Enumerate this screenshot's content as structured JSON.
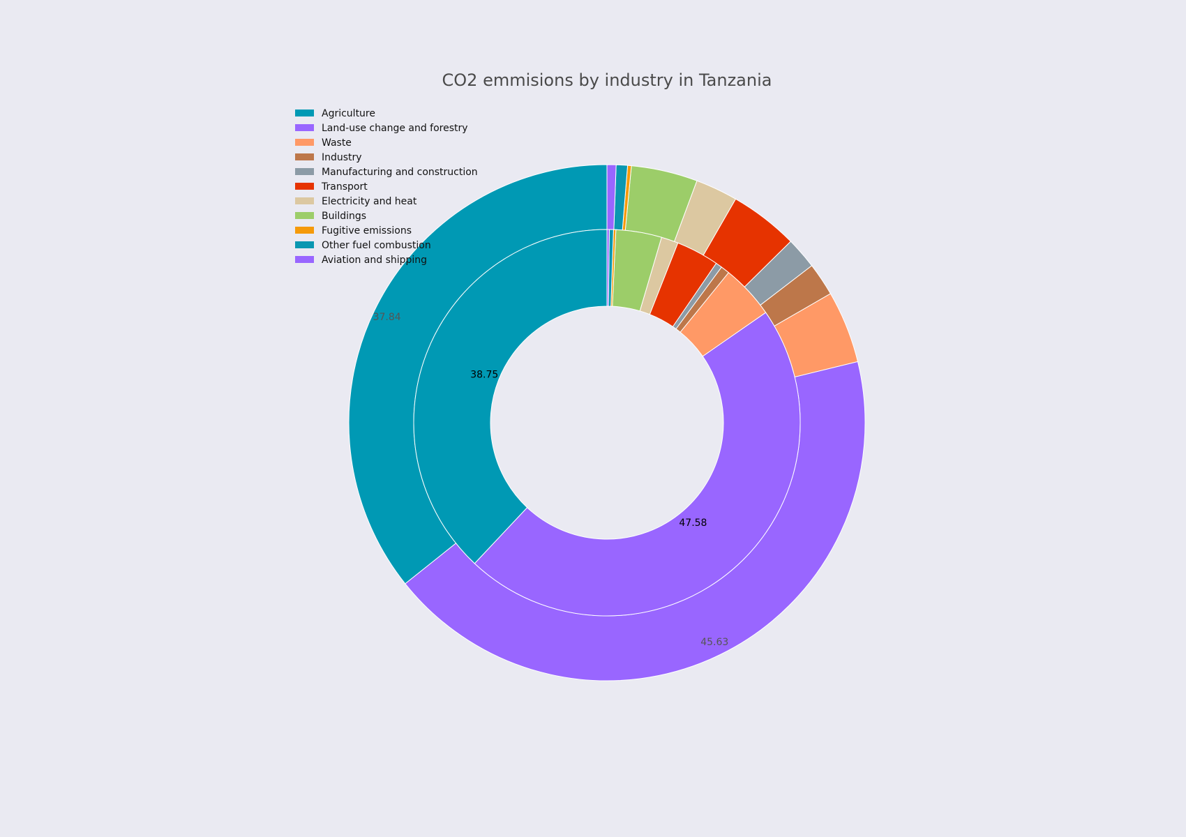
{
  "chart_data": {
    "type": "pie",
    "subtype": "nested-donut",
    "title": "CO2 emmisions by industry in Tanzania",
    "legend_placement": "top-left",
    "categories": [
      "Agriculture",
      "Land-use change and forestry",
      "Waste",
      "Industry",
      "Manufacturing and construction",
      "Transport",
      "Electricity and heat",
      "Buildings",
      "Fugitive emissions",
      "Other fuel combustion",
      "Aviation and shipping"
    ],
    "colors": [
      "#0099b4",
      "#9966ff",
      "#ff9966",
      "#bd774a",
      "#8c9ba6",
      "#e63300",
      "#dcc8a1",
      "#9ccd69",
      "#f59a0a",
      "#0a97b1",
      "#9966ff"
    ],
    "series": [
      {
        "ring": "inner",
        "values": [
          38.75,
          47.58,
          4.6,
          0.75,
          0.55,
          3.65,
          1.45,
          3.9,
          0.2,
          0.35,
          0.2
        ],
        "labels": [
          "38.75",
          "47.58"
        ]
      },
      {
        "ring": "outer",
        "values": [
          37.84,
          45.63,
          4.8,
          2.2,
          2.1,
          4.55,
          2.8,
          4.4,
          0.25,
          0.75,
          0.6
        ],
        "labels": [
          "37.84",
          "45.63"
        ]
      }
    ]
  }
}
